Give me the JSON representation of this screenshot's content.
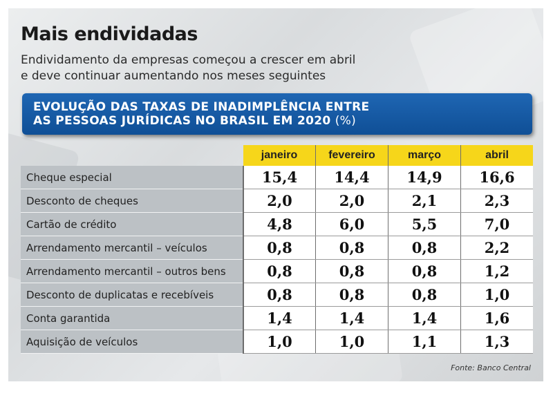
{
  "header": {
    "title": "Mais endividadas",
    "subtitle_line1": "Endividamento da empresas começou a crescer em abril",
    "subtitle_line2": "e deve continuar aumentando nos meses seguintes"
  },
  "banner": {
    "line1": "EVOLUÇÃO DAS TAXAS DE INADIMPLÊNCIA ENTRE",
    "line2": "AS PESSOAS JURÍDICAS NO BRASIL EM 2020",
    "unit": "(%)"
  },
  "chart_data": {
    "type": "table",
    "title": "EVOLUÇÃO DAS TAXAS DE INADIMPLÊNCIA ENTRE AS PESSOAS JURÍDICAS NO BRASIL EM 2020 (%)",
    "columns": [
      "janeiro",
      "fevereiro",
      "março",
      "abril"
    ],
    "rows": [
      {
        "label": "Cheque especial",
        "values": [
          "15,4",
          "14,4",
          "14,9",
          "16,6"
        ]
      },
      {
        "label": "Desconto de cheques",
        "values": [
          "2,0",
          "2,0",
          "2,1",
          "2,3"
        ]
      },
      {
        "label": "Cartão de crédito",
        "values": [
          "4,8",
          "6,0",
          "5,5",
          "7,0"
        ]
      },
      {
        "label": "Arrendamento mercantil – veículos",
        "values": [
          "0,8",
          "0,8",
          "0,8",
          "2,2"
        ]
      },
      {
        "label": "Arrendamento mercantil – outros bens",
        "values": [
          "0,8",
          "0,8",
          "0,8",
          "1,2"
        ]
      },
      {
        "label": "Desconto de duplicatas e recebíveis",
        "values": [
          "0,8",
          "0,8",
          "0,8",
          "1,0"
        ]
      },
      {
        "label": "Conta garantida",
        "values": [
          "1,4",
          "1,4",
          "1,4",
          "1,6"
        ]
      },
      {
        "label": "Aquisição de veículos",
        "values": [
          "1,0",
          "1,0",
          "1,1",
          "1,3"
        ]
      }
    ]
  },
  "footer": {
    "source": "Fonte: Banco Central"
  }
}
